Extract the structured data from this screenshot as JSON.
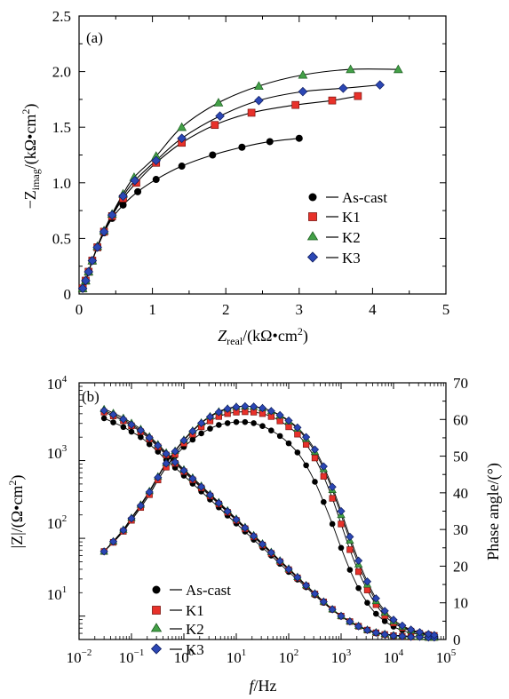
{
  "chart_data": [
    {
      "panel_label": "(a)",
      "type": "scatter",
      "xlabel": {
        "prefix": "Z",
        "sub": "real",
        "suffix": "/(kΩ•cm",
        "sup": "2",
        "end": ")"
      },
      "ylabel": {
        "prefix": "−Z",
        "sub": "imag",
        "suffix": "/(kΩ•cm",
        "sup": "2",
        "end": ")"
      },
      "xlim": [
        0,
        5
      ],
      "ylim": [
        0,
        2.5
      ],
      "x_ticks": [
        "0",
        "1",
        "2",
        "3",
        "4",
        "5"
      ],
      "y_ticks": [
        "0",
        "0.5",
        "1.0",
        "1.5",
        "2.0",
        "2.5"
      ],
      "grid": false,
      "legend_position": "center-right",
      "series": [
        {
          "name": "As-cast",
          "marker": "circle",
          "color": "#000000",
          "x": [
            0.05,
            0.09,
            0.13,
            0.18,
            0.25,
            0.34,
            0.45,
            0.6,
            0.8,
            1.05,
            1.4,
            1.82,
            2.22,
            2.6,
            3.0
          ],
          "y": [
            0.05,
            0.12,
            0.2,
            0.3,
            0.42,
            0.55,
            0.68,
            0.8,
            0.92,
            1.03,
            1.15,
            1.25,
            1.32,
            1.37,
            1.4
          ]
        },
        {
          "name": "K1",
          "marker": "square",
          "color": "#e8312a",
          "x": [
            0.05,
            0.09,
            0.13,
            0.18,
            0.25,
            0.34,
            0.45,
            0.6,
            0.78,
            1.05,
            1.4,
            1.85,
            2.35,
            2.95,
            3.45,
            3.8
          ],
          "y": [
            0.05,
            0.12,
            0.2,
            0.3,
            0.42,
            0.56,
            0.7,
            0.86,
            1.0,
            1.18,
            1.36,
            1.52,
            1.63,
            1.7,
            1.74,
            1.78
          ]
        },
        {
          "name": "K2",
          "marker": "triangle",
          "color": "#43a047",
          "x": [
            0.05,
            0.09,
            0.13,
            0.18,
            0.25,
            0.34,
            0.45,
            0.6,
            0.75,
            1.05,
            1.4,
            1.9,
            2.45,
            3.05,
            3.7,
            4.35
          ],
          "y": [
            0.05,
            0.12,
            0.2,
            0.3,
            0.43,
            0.57,
            0.72,
            0.9,
            1.05,
            1.24,
            1.5,
            1.72,
            1.87,
            1.97,
            2.02,
            2.02
          ]
        },
        {
          "name": "K3",
          "marker": "diamond",
          "color": "#2b47b4",
          "x": [
            0.05,
            0.09,
            0.13,
            0.18,
            0.25,
            0.34,
            0.45,
            0.6,
            0.76,
            1.05,
            1.4,
            1.92,
            2.45,
            3.05,
            3.6,
            4.1
          ],
          "y": [
            0.05,
            0.12,
            0.2,
            0.3,
            0.42,
            0.56,
            0.71,
            0.88,
            1.02,
            1.2,
            1.4,
            1.6,
            1.74,
            1.82,
            1.85,
            1.88
          ]
        }
      ]
    },
    {
      "panel_label": "(b)",
      "type": "scatter",
      "xlabel": {
        "prefix": "f",
        "suffix": "/Hz"
      },
      "ylabel_left": {
        "text": "|Z|/(Ω•cm",
        "sup": "2",
        "end": ")"
      },
      "ylabel_right": "Phase angle/(°)",
      "x_scale": "log",
      "xlim": [
        0.01,
        100000
      ],
      "x_ticks": [
        {
          "base": "10",
          "exp": "−2"
        },
        {
          "base": "10",
          "exp": "−1"
        },
        {
          "base": "10",
          "exp": "0"
        },
        {
          "base": "10",
          "exp": "1"
        },
        {
          "base": "10",
          "exp": "2"
        },
        {
          "base": "10",
          "exp": "3"
        },
        {
          "base": "10",
          "exp": "4"
        },
        {
          "base": "10",
          "exp": "5"
        }
      ],
      "y_left_scale": "log",
      "ylim_left": [
        5,
        10000
      ],
      "y_left_ticks": [
        {
          "base": "10",
          "exp": "1"
        },
        {
          "base": "10",
          "exp": "2"
        },
        {
          "base": "10",
          "exp": "3"
        },
        {
          "base": "10",
          "exp": "4"
        }
      ],
      "ylim_right": [
        0,
        70
      ],
      "y_right_ticks": [
        "0",
        "10",
        "20",
        "30",
        "40",
        "50",
        "60",
        "70"
      ],
      "grid": false,
      "legend_position": "bottom-left",
      "freq_hz": [
        0.03,
        0.045,
        0.07,
        0.1,
        0.15,
        0.22,
        0.32,
        0.46,
        0.68,
        1,
        1.47,
        2.15,
        3.16,
        4.64,
        6.81,
        10,
        14.7,
        21.5,
        31.6,
        46.4,
        68.1,
        100,
        147,
        215,
        316,
        464,
        681,
        1000,
        1470,
        2150,
        3160,
        4640,
        6810,
        10000,
        14700,
        21500,
        31600,
        46400,
        60000
      ],
      "series": [
        {
          "name": "As-cast",
          "marker": "circle",
          "color": "#000000",
          "modulus": [
            3500,
            3100,
            2700,
            2350,
            2000,
            1620,
            1300,
            1020,
            810,
            640,
            505,
            400,
            315,
            250,
            196,
            155,
            122,
            96,
            76,
            60,
            47,
            37,
            29.5,
            23.5,
            18.5,
            14.8,
            12,
            9.9,
            8.4,
            7.3,
            6.6,
            6.1,
            5.8,
            5.6,
            5.5,
            5.4,
            5.4,
            5.3,
            5.3
          ],
          "phase": [
            24,
            26.5,
            29.5,
            32.5,
            36,
            39.5,
            43.5,
            47,
            50,
            52.5,
            54.5,
            56.2,
            57.5,
            58.5,
            59,
            59.3,
            59.3,
            59,
            58.2,
            57,
            55.5,
            53.5,
            51,
            47.5,
            43,
            37.5,
            31.5,
            25,
            19,
            14,
            10,
            7,
            5,
            3.5,
            2.5,
            1.8,
            1.4,
            1.1,
            1
          ]
        },
        {
          "name": "K1",
          "marker": "square",
          "color": "#e8312a",
          "modulus": [
            4200,
            3750,
            3250,
            2800,
            2350,
            1900,
            1500,
            1180,
            920,
            720,
            565,
            445,
            350,
            276,
            216,
            170,
            133,
            105,
            82,
            64,
            50,
            39.5,
            31,
            24.5,
            19.2,
            15.2,
            12.2,
            10,
            8.5,
            7.4,
            6.6,
            6.1,
            5.8,
            5.6,
            5.5,
            5.4,
            5.4,
            5.3,
            5.3
          ],
          "phase": [
            24,
            26.5,
            29.5,
            32.5,
            36,
            39.5,
            43.5,
            47,
            50.5,
            53.5,
            56,
            58,
            59.6,
            60.8,
            61.6,
            62,
            62.1,
            62,
            61.6,
            60.8,
            59.6,
            58,
            56,
            53.2,
            49.5,
            44.5,
            38.5,
            31.5,
            24.5,
            18.5,
            13.5,
            9.5,
            6.5,
            4.5,
            3.2,
            2.3,
            1.7,
            1.3,
            1.1
          ]
        },
        {
          "name": "K2",
          "marker": "triangle",
          "color": "#43a047",
          "modulus": [
            4600,
            4100,
            3550,
            3050,
            2550,
            2050,
            1620,
            1270,
            990,
            770,
            605,
            475,
            372,
            292,
            229,
            179,
            140,
            110,
            86,
            67,
            52,
            41,
            32,
            25,
            19.6,
            15.4,
            12.3,
            10.1,
            8.6,
            7.5,
            6.7,
            6.2,
            5.9,
            5.7,
            5.6,
            5.5,
            5.4,
            5.3,
            5.3
          ],
          "phase": [
            24,
            26.8,
            30,
            33.2,
            36.8,
            40.5,
            44.5,
            48.2,
            51.5,
            54.5,
            57,
            59.2,
            60.9,
            62.2,
            63,
            63.5,
            63.6,
            63.5,
            63.1,
            62.3,
            61.1,
            59.5,
            57.5,
            54.7,
            51.2,
            46.5,
            40.8,
            34,
            27,
            20.5,
            15,
            10.5,
            7.3,
            5,
            3.5,
            2.5,
            1.8,
            1.4,
            1.2
          ]
        },
        {
          "name": "K3",
          "marker": "diamond",
          "color": "#2b47b4",
          "modulus": [
            4400,
            3900,
            3400,
            2900,
            2450,
            1970,
            1560,
            1225,
            955,
            745,
            585,
            460,
            361,
            284,
            222,
            174,
            136,
            107,
            84,
            65.5,
            51,
            40,
            31.5,
            24.8,
            19.4,
            15.3,
            12.2,
            10,
            8.5,
            7.4,
            6.6,
            6.1,
            5.8,
            5.6,
            5.5,
            5.4,
            5.4,
            5.3,
            5.3
          ],
          "phase": [
            24,
            26.7,
            29.8,
            33,
            36.5,
            40.2,
            44.2,
            48,
            51.3,
            54.3,
            56.8,
            59,
            60.7,
            62,
            62.9,
            63.4,
            63.6,
            63.5,
            63.1,
            62.3,
            61.2,
            59.7,
            57.8,
            55.2,
            51.8,
            47.2,
            41.6,
            35,
            28,
            21.5,
            15.8,
            11.2,
            7.8,
            5.4,
            3.8,
            2.7,
            2,
            1.5,
            1.2
          ]
        }
      ]
    }
  ]
}
